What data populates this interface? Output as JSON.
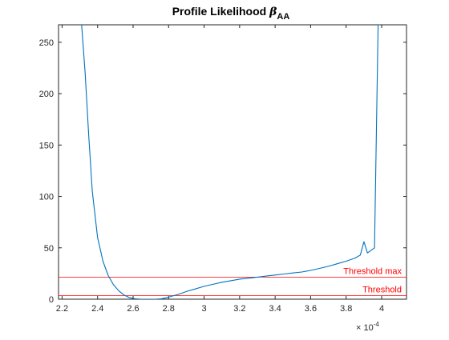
{
  "chart_data": {
    "type": "line",
    "title_main": "Profile Likelihood ",
    "title_symbol": "β",
    "title_subscript": "AA",
    "xlim": [
      2.18,
      4.14
    ],
    "ylim": [
      0,
      267
    ],
    "x_tick_values": [
      2.2,
      2.4,
      2.6,
      2.8,
      3.0,
      3.2,
      3.4,
      3.6,
      3.8,
      4.0
    ],
    "x_tick_labels": [
      "2.2",
      "2.4",
      "2.6",
      "2.8",
      "3",
      "3.2",
      "3.4",
      "3.6",
      "3.8",
      "4"
    ],
    "x_exponent_base": "× 10",
    "x_exponent_power": "-4",
    "y_tick_values": [
      0,
      50,
      100,
      150,
      200,
      250
    ],
    "y_tick_labels": [
      "0",
      "50",
      "100",
      "150",
      "200",
      "250"
    ],
    "grid": false,
    "series": [
      {
        "color": "#0072BD",
        "x": [
          2.31,
          2.33,
          2.35,
          2.37,
          2.4,
          2.43,
          2.46,
          2.49,
          2.52,
          2.55,
          2.58,
          2.61,
          2.64,
          2.67,
          2.7,
          2.73,
          2.76,
          2.79,
          2.82,
          2.86,
          2.9,
          2.95,
          3.0,
          3.05,
          3.1,
          3.15,
          3.2,
          3.25,
          3.3,
          3.35,
          3.4,
          3.45,
          3.5,
          3.55,
          3.6,
          3.65,
          3.7,
          3.75,
          3.8,
          3.85,
          3.88,
          3.9,
          3.92,
          3.96,
          3.98,
          3.99
        ],
        "y": [
          267,
          220,
          160,
          105,
          60,
          37,
          23,
          14,
          8,
          4,
          1.5,
          0.5,
          0,
          0,
          0,
          0,
          0.5,
          1.5,
          3,
          5,
          7.5,
          10,
          12.5,
          14.5,
          16.5,
          18,
          19.5,
          20.5,
          21.5,
          22.5,
          23.5,
          24.5,
          25.5,
          26.5,
          28,
          30,
          32,
          34.5,
          37,
          40,
          43,
          56,
          45,
          50,
          267,
          267
        ]
      }
    ],
    "threshold_lines": [
      {
        "label": "Threshold max",
        "y": 21.5,
        "color": "#ff0000"
      },
      {
        "label": "Threshold",
        "y": 3.5,
        "color": "#ff0000"
      }
    ]
  }
}
